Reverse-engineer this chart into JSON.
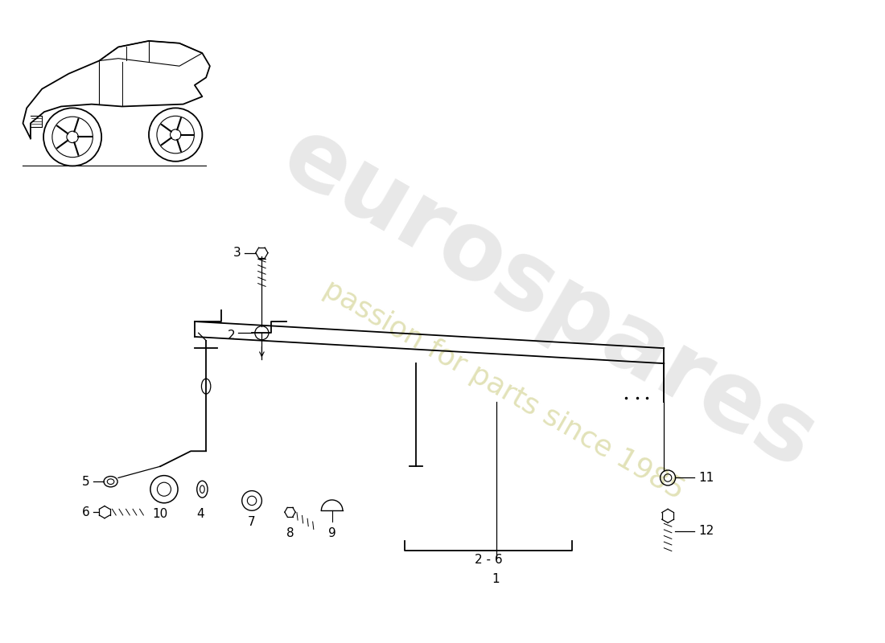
{
  "background_color": "#ffffff",
  "watermark_text": "eurospares",
  "watermark_subtext": "passion for parts since 1985",
  "label_2_6": "2 - 6"
}
